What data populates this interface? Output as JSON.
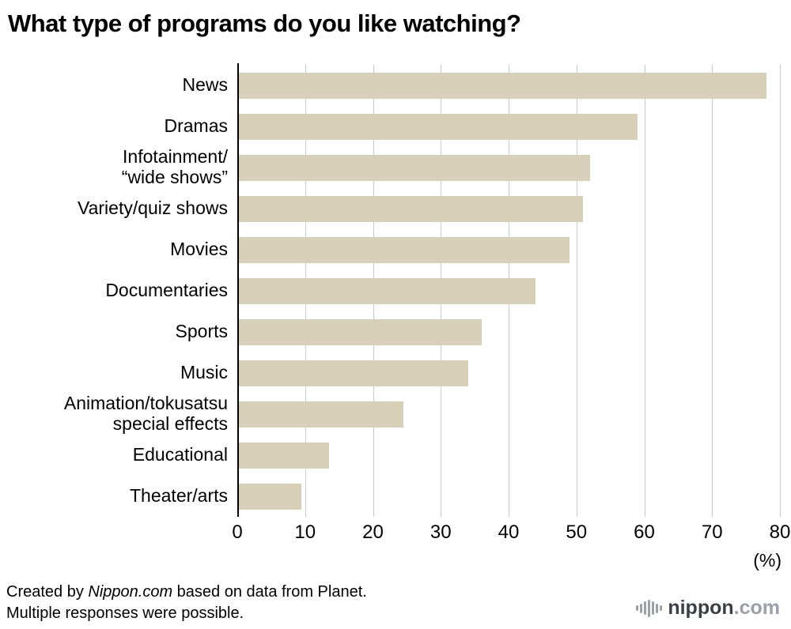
{
  "title": "What type of programs do you like watching?",
  "chart_data": {
    "type": "bar",
    "orientation": "horizontal",
    "title": "What type of programs do you like watching?",
    "categories": [
      "News",
      "Dramas",
      "Infotainment/\n“wide shows”",
      "Variety/quiz shows",
      "Movies",
      "Documentaries",
      "Sports",
      "Music",
      "Animation/tokusatsu\nspecial effects",
      "Educational",
      "Theater/arts"
    ],
    "values": [
      78,
      59,
      52,
      51,
      49,
      44,
      36,
      34,
      24.5,
      13.5,
      9.5
    ],
    "xlim": [
      0,
      80
    ],
    "xticks": [
      0,
      10,
      20,
      30,
      40,
      50,
      60,
      70,
      80
    ],
    "unit_label": "(%)",
    "bar_color": "#d8cfb8",
    "grid": true,
    "gridline_color": "#c9c9c9"
  },
  "footer": {
    "line1_prefix": "Created by ",
    "line1_brand": "Nippon.com",
    "line1_suffix": " based on data from Planet.",
    "line2": "Multiple responses were possible."
  },
  "logo": {
    "icon": "soundwave-bars-icon",
    "name": "nippon",
    "tld": ".com"
  }
}
